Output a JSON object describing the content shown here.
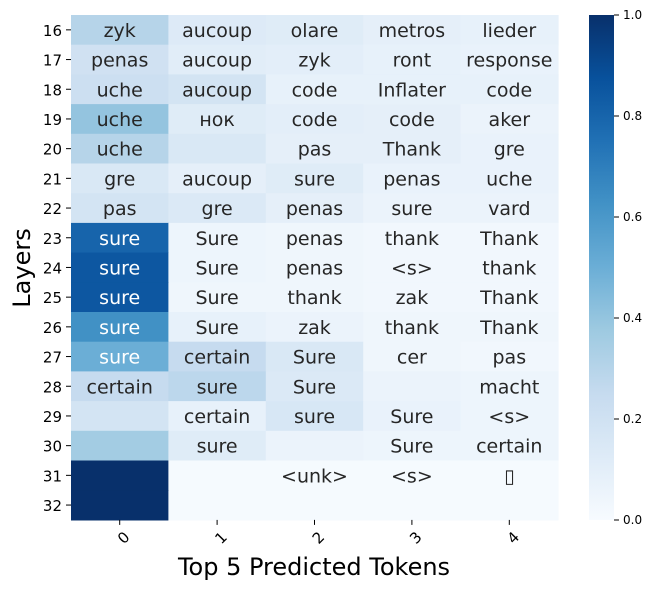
{
  "chart_data": {
    "type": "heatmap",
    "xlabel": "Top 5 Predicted Tokens",
    "ylabel": "Layers",
    "x_categories": [
      "0",
      "1",
      "2",
      "3",
      "4"
    ],
    "y_categories": [
      "16",
      "17",
      "18",
      "19",
      "20",
      "21",
      "22",
      "23",
      "24",
      "25",
      "26",
      "27",
      "28",
      "29",
      "30",
      "31",
      "32"
    ],
    "colorbar": {
      "min": 0.0,
      "max": 1.0,
      "ticks": [
        "0.0",
        "0.2",
        "0.4",
        "0.6",
        "0.8",
        "1.0"
      ],
      "colormap": "Blues"
    },
    "tokens": [
      [
        "zyk",
        "aucoup",
        "olare",
        "metros",
        "lieder"
      ],
      [
        "penas",
        "aucoup",
        "zyk",
        "ront",
        "response"
      ],
      [
        "uche",
        "aucoup",
        "code",
        "Inflater",
        "code"
      ],
      [
        "uche",
        "нок",
        "code",
        "code",
        "aker"
      ],
      [
        "uche",
        "",
        "pas",
        "Thank",
        "gre"
      ],
      [
        "gre",
        "aucoup",
        "sure",
        "penas",
        "uche"
      ],
      [
        "pas",
        "gre",
        "penas",
        "sure",
        "vard"
      ],
      [
        "sure",
        "Sure",
        "penas",
        "thank",
        "Thank"
      ],
      [
        "sure",
        "Sure",
        "penas",
        "<s>",
        "thank"
      ],
      [
        "sure",
        "Sure",
        "thank",
        "zak",
        "Thank"
      ],
      [
        "sure",
        "Sure",
        "zak",
        "thank",
        "Thank"
      ],
      [
        "sure",
        "certain",
        "Sure",
        "cer",
        "pas"
      ],
      [
        "certain",
        "sure",
        "Sure",
        "",
        "macht"
      ],
      [
        "",
        "certain",
        "sure",
        "Sure",
        "<s>"
      ],
      [
        "",
        "sure",
        "",
        "Sure",
        "certain"
      ],
      [
        "",
        "",
        "<unk>",
        "<s>",
        "▯"
      ],
      [
        "",
        "",
        "",
        "",
        ""
      ]
    ],
    "values": [
      [
        0.3,
        0.13,
        0.12,
        0.09,
        0.08
      ],
      [
        0.2,
        0.11,
        0.1,
        0.08,
        0.07
      ],
      [
        0.22,
        0.18,
        0.08,
        0.08,
        0.08
      ],
      [
        0.4,
        0.12,
        0.1,
        0.09,
        0.06
      ],
      [
        0.3,
        0.15,
        0.09,
        0.09,
        0.07
      ],
      [
        0.15,
        0.09,
        0.12,
        0.07,
        0.07
      ],
      [
        0.18,
        0.14,
        0.09,
        0.06,
        0.06
      ],
      [
        0.8,
        0.05,
        0.04,
        0.03,
        0.03
      ],
      [
        0.85,
        0.05,
        0.04,
        0.03,
        0.03
      ],
      [
        0.85,
        0.04,
        0.04,
        0.03,
        0.03
      ],
      [
        0.63,
        0.08,
        0.06,
        0.04,
        0.04
      ],
      [
        0.5,
        0.25,
        0.15,
        0.04,
        0.03
      ],
      [
        0.25,
        0.28,
        0.14,
        0.06,
        0.05
      ],
      [
        0.18,
        0.08,
        0.16,
        0.07,
        0.05
      ],
      [
        0.36,
        0.12,
        0.06,
        0.05,
        0.05
      ],
      [
        1.0,
        0.01,
        0.01,
        0.01,
        0.01
      ],
      [
        1.0,
        0.01,
        0.01,
        0.01,
        0.01
      ]
    ]
  }
}
